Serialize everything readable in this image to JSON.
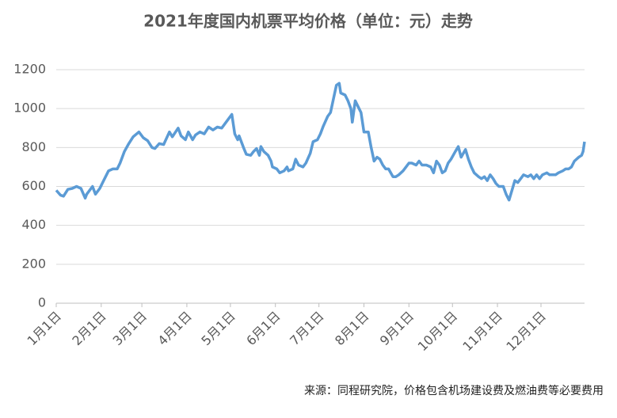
{
  "chart_data": {
    "type": "line",
    "title": "2021年度国内机票平均价格（单位：元）走势",
    "source": "来源：同程研究院，价格包含机场建设费及燃油费等必要费用",
    "x": [
      0,
      3,
      5,
      8,
      11,
      14,
      17,
      20,
      21,
      25,
      27,
      30,
      32,
      36,
      39,
      42,
      44,
      47,
      50,
      53,
      57,
      60,
      63,
      66,
      68,
      71,
      74,
      78,
      80,
      84,
      86,
      89,
      91,
      94,
      96,
      99,
      102,
      105,
      108,
      111,
      114,
      118,
      121,
      123,
      125,
      126,
      129,
      131,
      134,
      136,
      138,
      140,
      141,
      143,
      146,
      148,
      149,
      152,
      154,
      157,
      159,
      160,
      163,
      165,
      167,
      170,
      172,
      175,
      177,
      180,
      182,
      184,
      187,
      189,
      191,
      193,
      195,
      196,
      199,
      201,
      203,
      204,
      206,
      208,
      210,
      212,
      215,
      217,
      219,
      221,
      223,
      225,
      227,
      229,
      232,
      234,
      236,
      239,
      241,
      243,
      245,
      248,
      250,
      252,
      255,
      258,
      260,
      262,
      264,
      266,
      268,
      270,
      272,
      275,
      277,
      279,
      282,
      284,
      286,
      288,
      291,
      293,
      295,
      297,
      299,
      301,
      303,
      305,
      308,
      310,
      312,
      314,
      316,
      318,
      320,
      322,
      325,
      327,
      329,
      331,
      333,
      335,
      338,
      340,
      342,
      344,
      346,
      349,
      351,
      353,
      355,
      357,
      360,
      362,
      363,
      364
    ],
    "series": [
      {
        "name": "平均价格",
        "color": "#5b9bd5",
        "values": [
          580,
          555,
          550,
          585,
          590,
          600,
          590,
          540,
          560,
          600,
          560,
          590,
          620,
          680,
          690,
          690,
          720,
          780,
          820,
          855,
          880,
          850,
          835,
          800,
          795,
          820,
          815,
          880,
          855,
          900,
          860,
          840,
          880,
          840,
          865,
          880,
          870,
          905,
          890,
          905,
          900,
          940,
          970,
          870,
          840,
          860,
          800,
          765,
          760,
          780,
          795,
          760,
          805,
          780,
          760,
          730,
          700,
          690,
          670,
          680,
          700,
          680,
          690,
          740,
          710,
          700,
          720,
          770,
          830,
          840,
          870,
          910,
          960,
          980,
          1050,
          1120,
          1130,
          1080,
          1070,
          1040,
          1000,
          930,
          1040,
          1010,
          980,
          880,
          880,
          800,
          730,
          750,
          740,
          710,
          690,
          690,
          650,
          650,
          660,
          680,
          700,
          720,
          720,
          710,
          730,
          710,
          710,
          700,
          670,
          730,
          710,
          670,
          680,
          720,
          740,
          780,
          805,
          750,
          790,
          740,
          700,
          670,
          650,
          640,
          650,
          630,
          660,
          640,
          615,
          600,
          600,
          560,
          530,
          580,
          630,
          620,
          640,
          660,
          650,
          660,
          640,
          660,
          640,
          660,
          670,
          660,
          660,
          660,
          670,
          680,
          690,
          690,
          700,
          730,
          750,
          760,
          780,
          830
        ]
      }
    ],
    "xlim": [
      0,
      364
    ],
    "xticks": [
      {
        "value": 0,
        "label": "1月1日"
      },
      {
        "value": 31,
        "label": "2月1日"
      },
      {
        "value": 59,
        "label": "3月1日"
      },
      {
        "value": 90,
        "label": "4月1日"
      },
      {
        "value": 120,
        "label": "5月1日"
      },
      {
        "value": 151,
        "label": "6月1日"
      },
      {
        "value": 181,
        "label": "7月1日"
      },
      {
        "value": 212,
        "label": "8月1日"
      },
      {
        "value": 243,
        "label": "9月1日"
      },
      {
        "value": 273,
        "label": "10月1日"
      },
      {
        "value": 304,
        "label": "11月1日"
      },
      {
        "value": 334,
        "label": "12月1日"
      }
    ],
    "ylim": [
      0,
      1200
    ],
    "yticks": [
      0,
      200,
      400,
      600,
      800,
      1000,
      1200
    ],
    "grid": true
  }
}
